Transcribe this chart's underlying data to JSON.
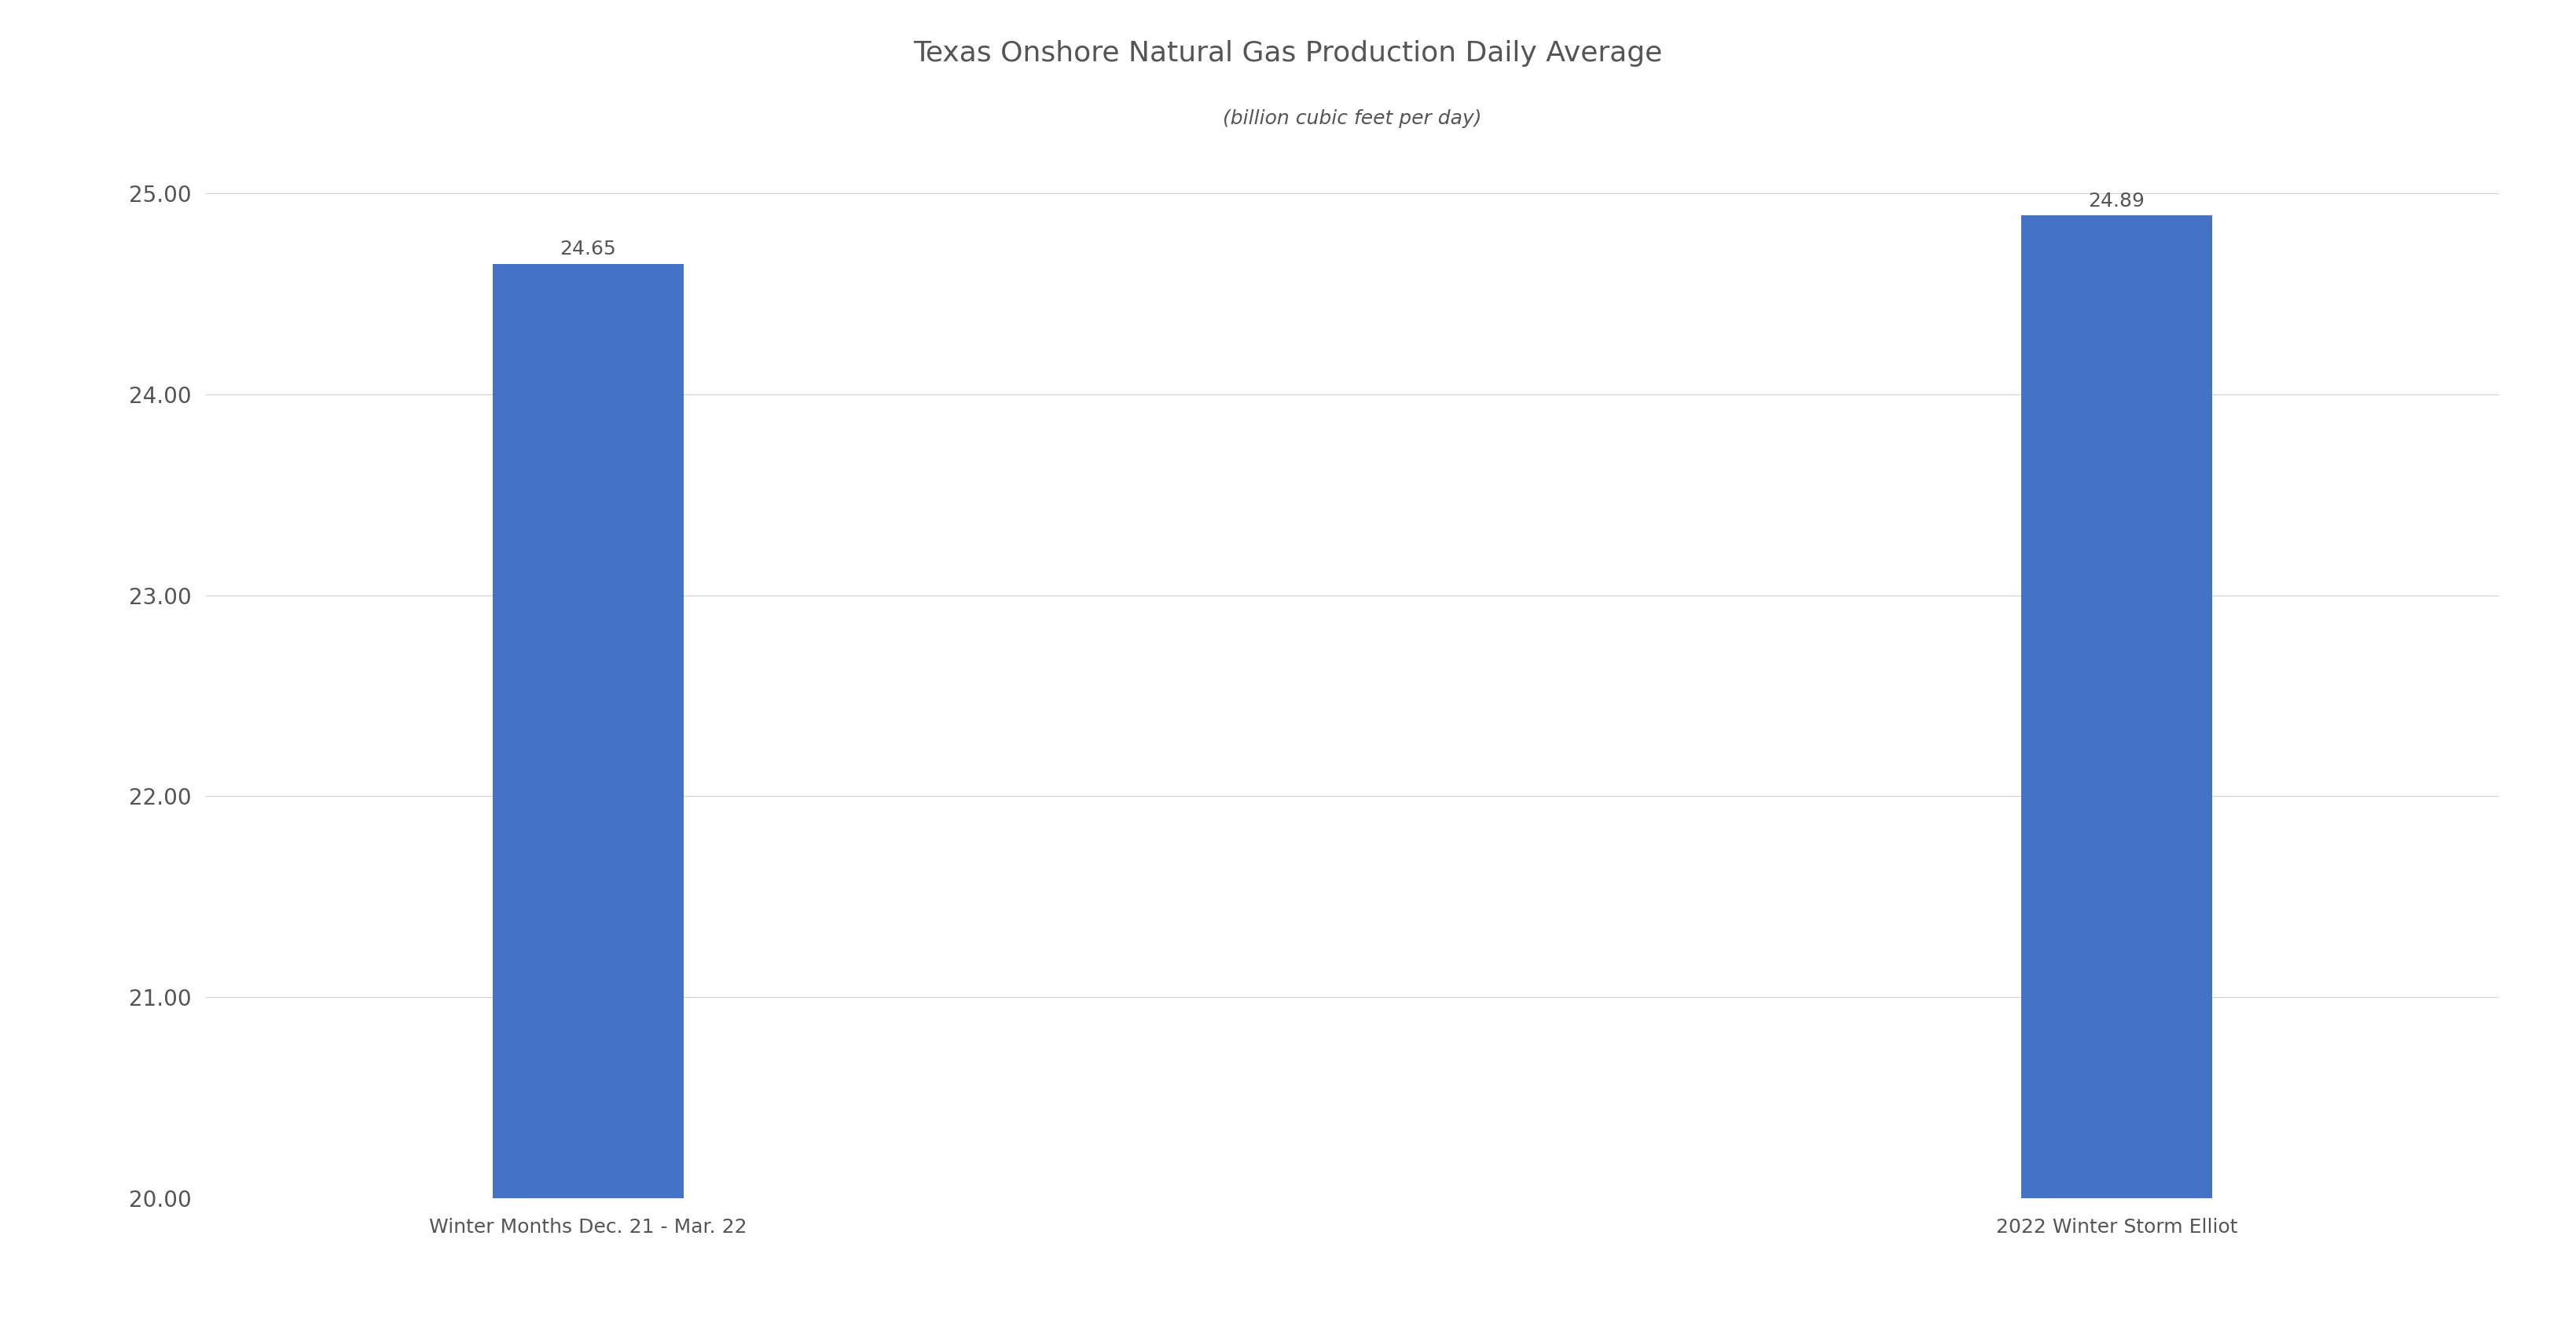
{
  "title": "Texas Onshore Natural Gas Production Daily Average",
  "subtitle": "(billion cubic feet per day)",
  "categories": [
    "Winter Months Dec. 21 - Mar. 22",
    "2022 Winter Storm Elliot"
  ],
  "values": [
    24.65,
    24.89
  ],
  "bar_color": "#4472C4",
  "ylim": [
    20.0,
    25.3
  ],
  "yticks": [
    20.0,
    21.0,
    22.0,
    23.0,
    24.0,
    25.0
  ],
  "bar_width": 0.25,
  "title_fontsize": 26,
  "subtitle_fontsize": 18,
  "label_fontsize": 18,
  "tick_fontsize": 20,
  "value_label_fontsize": 18,
  "background_color": "#ffffff",
  "grid_color": "#d0d0d0",
  "text_color": "#555555"
}
